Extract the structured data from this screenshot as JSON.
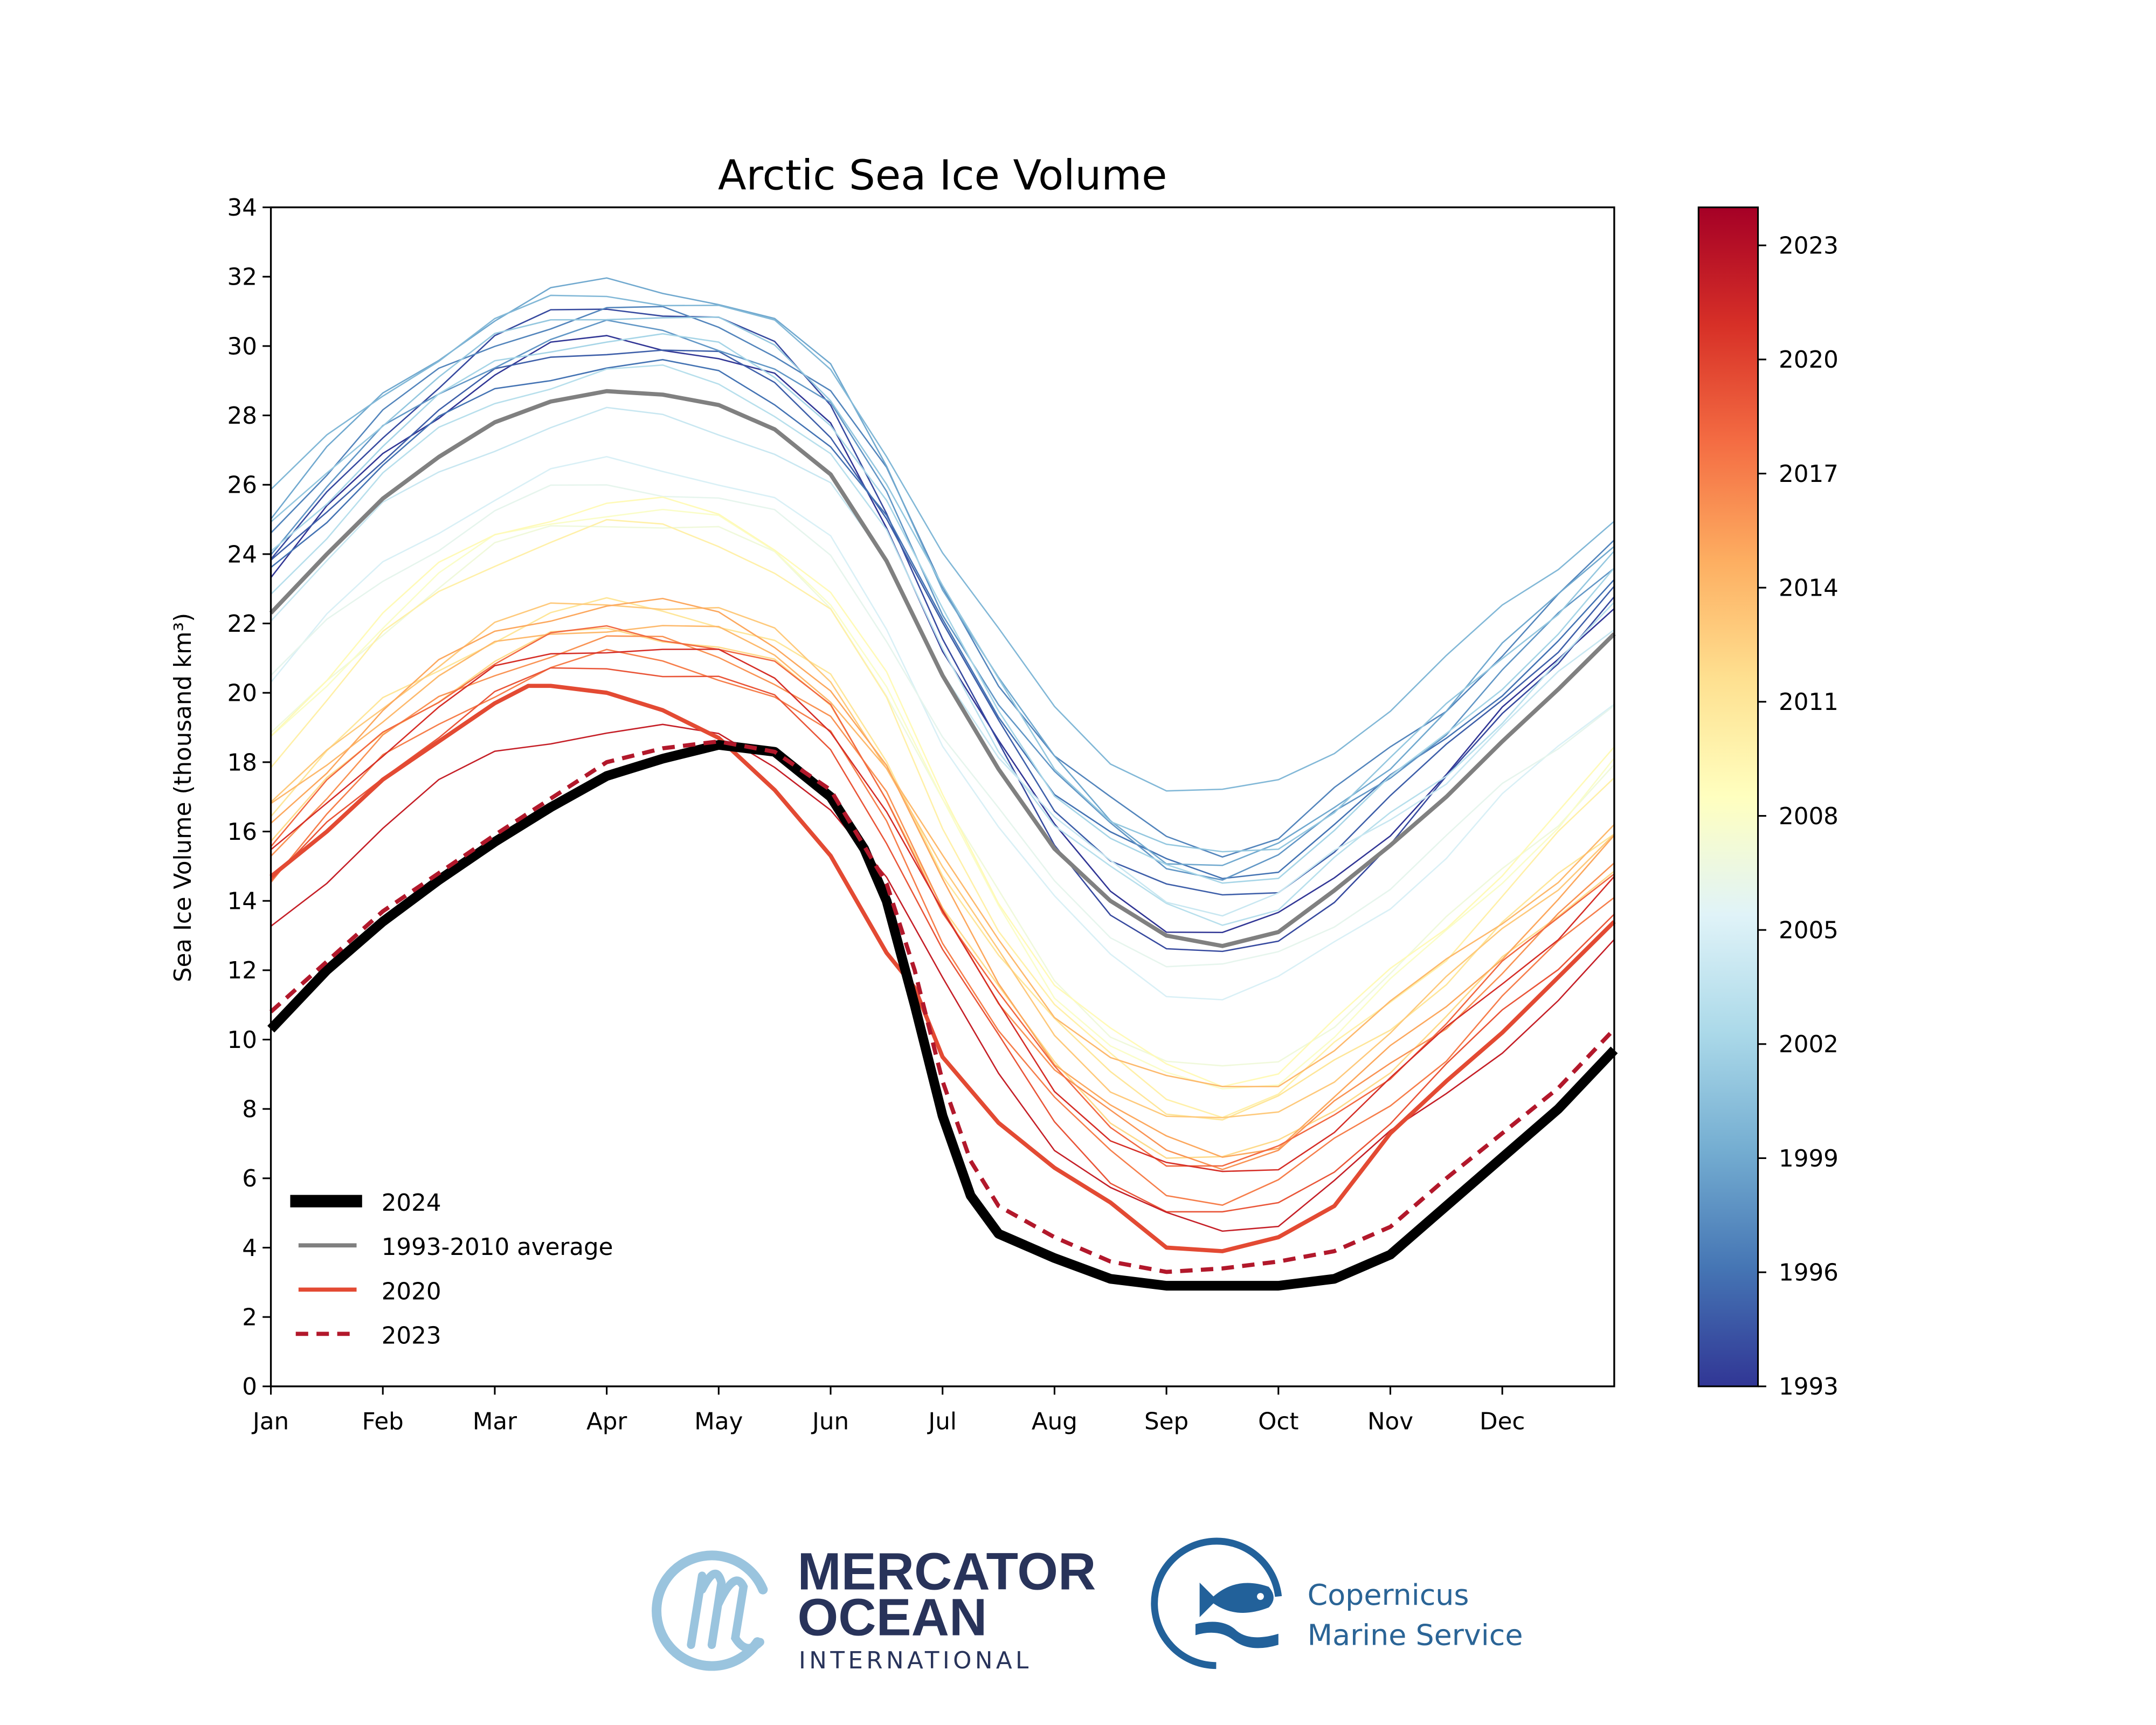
{
  "chart_data": {
    "type": "line",
    "title": "Arctic Sea Ice Volume",
    "xlabel": "",
    "ylabel": "Sea Ice Volume (thousand km³)",
    "ylim": [
      0,
      34
    ],
    "yticks": [
      "0",
      "2",
      "4",
      "6",
      "8",
      "10",
      "12",
      "14",
      "16",
      "18",
      "20",
      "22",
      "24",
      "26",
      "28",
      "30",
      "32",
      "34"
    ],
    "xticks": [
      "Jan",
      "Feb",
      "Mar",
      "Apr",
      "May",
      "Jun",
      "Jul",
      "Aug",
      "Sep",
      "Oct",
      "Nov",
      "Dec"
    ],
    "x_unit": "month index (0 = Jan 1, 12 = Dec 31)",
    "highlight_series": [
      {
        "name": "2024",
        "color": "#000000",
        "x": [
          0,
          0.5,
          1,
          1.5,
          2,
          2.5,
          3,
          3.5,
          4,
          4.5,
          5,
          5.3,
          5.5,
          5.75,
          6,
          6.25,
          6.5,
          7,
          7.5,
          8,
          8.5,
          9,
          9.5,
          10,
          10.5,
          11,
          11.5,
          12
        ],
        "values": [
          10.3,
          12.0,
          13.4,
          14.6,
          15.7,
          16.7,
          17.6,
          18.1,
          18.5,
          18.3,
          17.0,
          15.5,
          14.0,
          11.0,
          7.8,
          5.5,
          4.4,
          3.7,
          3.1,
          2.9,
          2.9,
          2.9,
          3.1,
          3.8,
          5.2,
          6.6,
          8.0,
          9.7
        ]
      },
      {
        "name": "1993-2010 average",
        "color": "#808080",
        "x": [
          0,
          0.5,
          1,
          1.5,
          2,
          2.5,
          3,
          3.5,
          4,
          4.5,
          5,
          5.5,
          6,
          6.5,
          7,
          7.5,
          8,
          8.5,
          9,
          9.5,
          10,
          10.5,
          11,
          11.5,
          12
        ],
        "values": [
          22.3,
          24.0,
          25.6,
          26.8,
          27.8,
          28.4,
          28.7,
          28.6,
          28.3,
          27.6,
          26.3,
          23.8,
          20.5,
          17.8,
          15.5,
          14.0,
          13.0,
          12.7,
          13.1,
          14.3,
          15.6,
          17.0,
          18.6,
          20.1,
          21.7
        ]
      },
      {
        "name": "2020",
        "color": "#e34a33",
        "x": [
          0,
          0.5,
          1,
          1.5,
          2,
          2.3,
          2.5,
          3,
          3.5,
          4,
          4.5,
          5,
          5.5,
          5.75,
          6,
          6.5,
          7,
          7.5,
          8,
          8.5,
          9,
          9.5,
          10,
          10.5,
          11,
          11.5,
          12
        ],
        "values": [
          14.7,
          16.0,
          17.5,
          18.6,
          19.7,
          20.2,
          20.2,
          20.0,
          19.5,
          18.7,
          17.2,
          15.3,
          12.5,
          11.5,
          9.5,
          7.6,
          6.3,
          5.3,
          4.0,
          3.9,
          4.3,
          5.2,
          7.3,
          8.8,
          10.2,
          11.8,
          13.4
        ]
      },
      {
        "name": "2023",
        "color": "#b2182b",
        "dashed": true,
        "x": [
          0,
          1,
          2,
          3,
          3.5,
          4,
          4.5,
          5,
          5.5,
          5.75,
          6,
          6.25,
          6.5,
          7,
          7.5,
          8,
          8.5,
          9,
          9.5,
          10,
          10.5,
          11,
          11.5,
          12
        ],
        "values": [
          10.8,
          13.7,
          15.9,
          18.0,
          18.4,
          18.6,
          18.3,
          17.2,
          14.5,
          12.0,
          8.8,
          6.5,
          5.2,
          4.3,
          3.6,
          3.3,
          3.4,
          3.6,
          3.9,
          4.6,
          6.0,
          7.3,
          8.6,
          10.3
        ]
      }
    ],
    "background_years": [
      {
        "year": 1993,
        "peak": 30.2,
        "min": 13.0
      },
      {
        "year": 1994,
        "peak": 31.2,
        "min": 12.3
      },
      {
        "year": 1995,
        "peak": 30.0,
        "min": 14.0
      },
      {
        "year": 1996,
        "peak": 29.5,
        "min": 14.7
      },
      {
        "year": 1997,
        "peak": 31.0,
        "min": 15.5
      },
      {
        "year": 1998,
        "peak": 30.5,
        "min": 14.8
      },
      {
        "year": 1999,
        "peak": 31.8,
        "min": 15.0
      },
      {
        "year": 2000,
        "peak": 31.5,
        "min": 17.0
      },
      {
        "year": 2001,
        "peak": 31.0,
        "min": 15.2
      },
      {
        "year": 2002,
        "peak": 30.3,
        "min": 14.5
      },
      {
        "year": 2003,
        "peak": 29.3,
        "min": 13.5
      },
      {
        "year": 2004,
        "peak": 28.0,
        "min": 13.8
      },
      {
        "year": 2005,
        "peak": 26.6,
        "min": 11.2
      },
      {
        "year": 2006,
        "peak": 26.0,
        "min": 12.0
      },
      {
        "year": 2007,
        "peak": 25.0,
        "min": 9.0
      },
      {
        "year": 2008,
        "peak": 25.3,
        "min": 8.5
      },
      {
        "year": 2009,
        "peak": 25.5,
        "min": 8.8
      },
      {
        "year": 2010,
        "peak": 24.8,
        "min": 8.0
      },
      {
        "year": 2011,
        "peak": 22.5,
        "min": 7.8
      },
      {
        "year": 2012,
        "peak": 21.8,
        "min": 6.5
      },
      {
        "year": 2013,
        "peak": 22.7,
        "min": 7.5
      },
      {
        "year": 2014,
        "peak": 22.0,
        "min": 8.5
      },
      {
        "year": 2015,
        "peak": 22.6,
        "min": 6.7
      },
      {
        "year": 2016,
        "peak": 21.5,
        "min": 6.5
      },
      {
        "year": 2017,
        "peak": 21.0,
        "min": 5.4
      },
      {
        "year": 2018,
        "peak": 21.8,
        "min": 6.3
      },
      {
        "year": 2019,
        "peak": 20.8,
        "min": 4.8
      },
      {
        "year": 2021,
        "peak": 21.4,
        "min": 6.0
      },
      {
        "year": 2022,
        "peak": 19.0,
        "min": 4.5
      }
    ],
    "legend": {
      "placement": "lower-left",
      "entries": [
        "2024",
        "1993-2010 average",
        "2020",
        "2023"
      ]
    },
    "colorbar": {
      "range": [
        1993,
        2024
      ],
      "ticks": [
        "1993",
        "1996",
        "1999",
        "2002",
        "2005",
        "2008",
        "2011",
        "2014",
        "2017",
        "2020",
        "2023"
      ],
      "colormap": "RdYlBu_r",
      "stops": [
        "#313695",
        "#4575b4",
        "#74add1",
        "#abd9e9",
        "#e0f3f8",
        "#ffffbf",
        "#fee090",
        "#fdae61",
        "#f46d43",
        "#d73027",
        "#a50026"
      ]
    },
    "grid": false
  },
  "logos": {
    "mercator": {
      "line1": "MERCATOR",
      "line2": "OCEAN",
      "line3": "INTERNATIONAL"
    },
    "copernicus": {
      "line1": "Copernicus",
      "line2": "Marine Service"
    }
  }
}
